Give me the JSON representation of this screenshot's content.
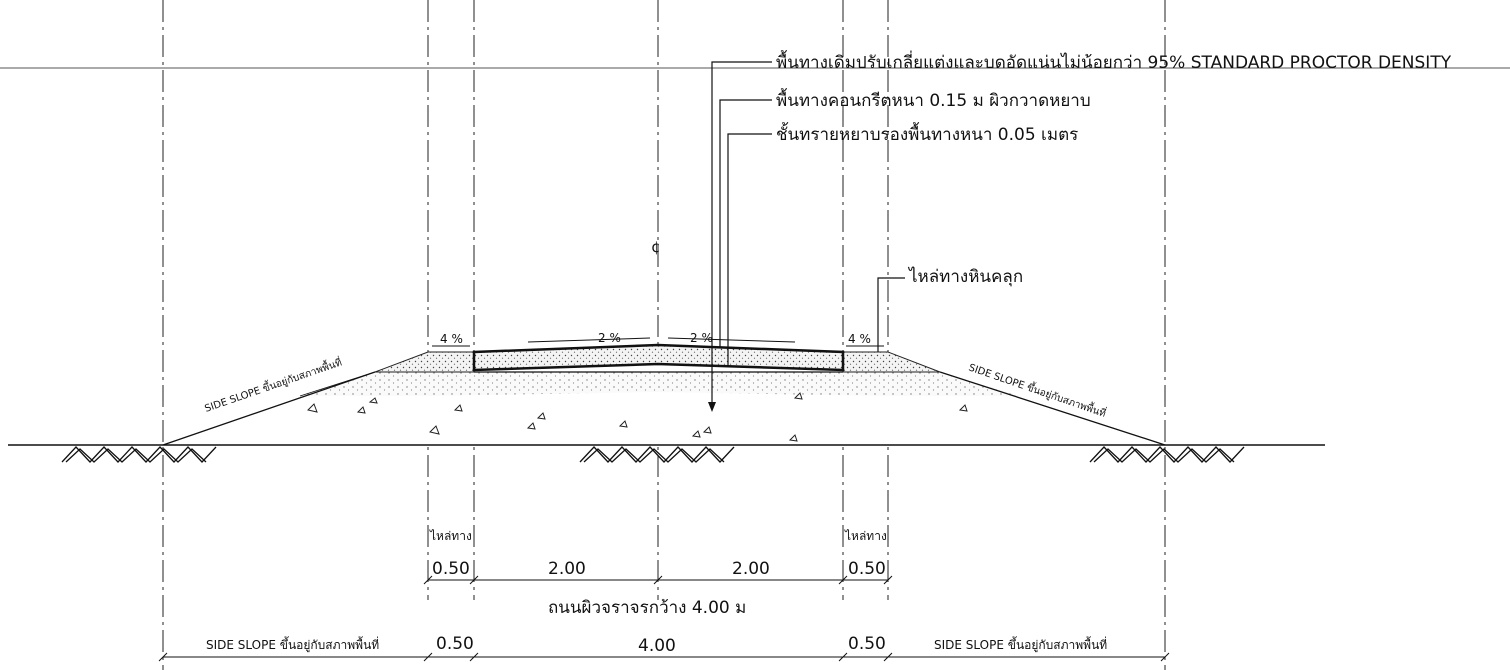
{
  "annotations": {
    "existing_ground": "พื้นทางเดิมปรับเกลี่ยแต่งและบดอัดแน่นไม่น้อยกว่า 95% STANDARD PROCTOR DENSITY",
    "concrete_surface": "พื้นทางคอนกรีตหนา 0.15 ม ผิวกวาดหยาบ",
    "sand_base": "ชั้นทรายหยาบรองพื้นทางหนา 0.05 เมตร",
    "shoulder_rock": "ไหล่ทางหินคลุก",
    "centerline": "¢"
  },
  "slopes": {
    "left_shoulder": "4 %",
    "left_lane": "2 %",
    "right_lane": "2 %",
    "right_shoulder": "4 %"
  },
  "side_slope_labels": {
    "left": "SIDE SLOPE ขึ้นอยู่กับสภาพพื้นที่",
    "right": "SIDE SLOPE ขึ้นอยู่กับสภาพพื้นที่"
  },
  "dimensions_row1": {
    "shoulder_label_left": "ไหล่ทาง",
    "shoulder_label_right": "ไหล่ทาง",
    "left_shoulder": "0.50",
    "left_lane": "2.00",
    "right_lane": "2.00",
    "right_shoulder": "0.50"
  },
  "road_width_caption": "ถนนผิวจราจรกว้าง 4.00 ม",
  "dimensions_row2": {
    "left_side_slope": "SIDE SLOPE ขึ้นอยู่กับสภาพพื้นที่",
    "left_shoulder": "0.50",
    "road": "4.00",
    "right_shoulder": "0.50",
    "right_side_slope": "SIDE SLOPE ขึ้นอยู่กับสภาพพื้นที่"
  }
}
